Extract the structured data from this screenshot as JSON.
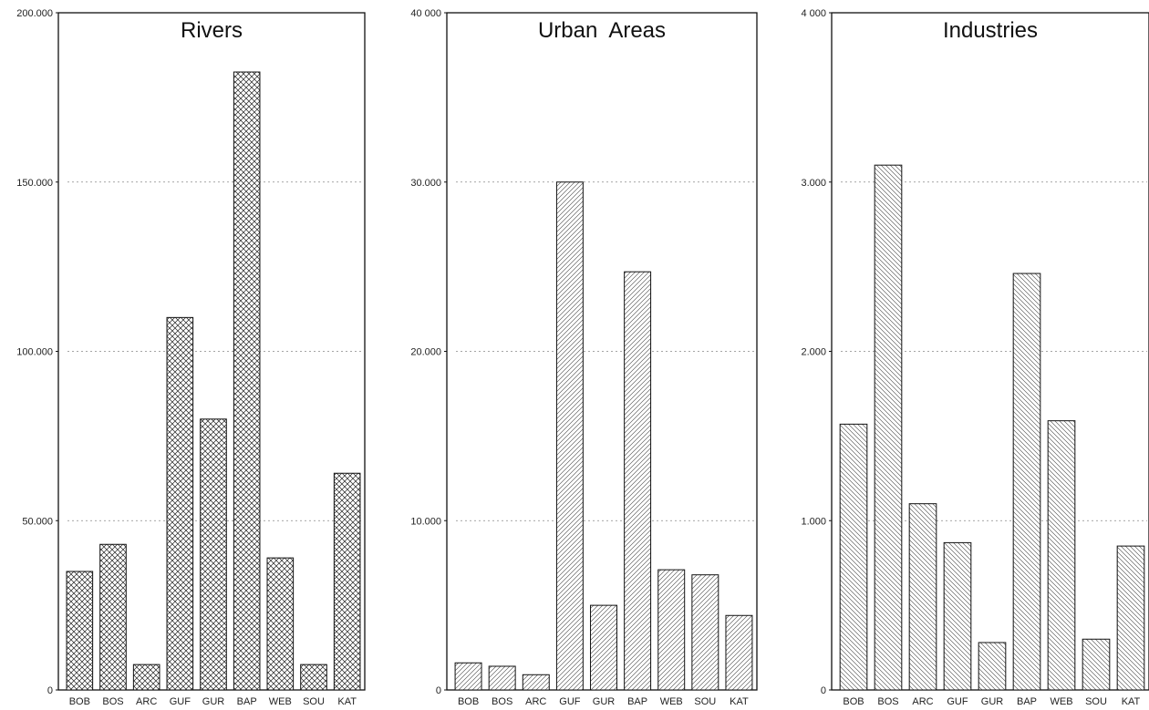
{
  "chart_data": [
    {
      "type": "bar",
      "title": "Rivers",
      "categories": [
        "BOB",
        "BOS",
        "ARC",
        "GUF",
        "GUR",
        "BAP",
        "WEB",
        "SOU",
        "KAT"
      ],
      "values": [
        35000,
        43000,
        7500,
        110000,
        80000,
        182500,
        39000,
        7500,
        64000
      ],
      "ylim": [
        0,
        200000
      ],
      "yticks": [
        0,
        50000,
        100000,
        150000,
        200000
      ],
      "ytick_labels": [
        "0",
        "50.000",
        "100.000",
        "150.000",
        "200.000"
      ],
      "grid": "dotted",
      "pattern": "crosshatch"
    },
    {
      "type": "bar",
      "title": "Urban  Areas",
      "categories": [
        "BOB",
        "BOS",
        "ARC",
        "GUF",
        "GUR",
        "BAP",
        "WEB",
        "SOU",
        "KAT"
      ],
      "values": [
        1600,
        1400,
        900,
        30000,
        5000,
        24700,
        7100,
        6800,
        4400
      ],
      "ylim": [
        0,
        40000
      ],
      "yticks": [
        0,
        10000,
        20000,
        30000,
        40000
      ],
      "ytick_labels": [
        "0",
        "10.000",
        "20.000",
        "30.000",
        "40 000"
      ],
      "grid": "dotted",
      "pattern": "diagonal-right"
    },
    {
      "type": "bar",
      "title": "Industries",
      "categories": [
        "BOB",
        "BOS",
        "ARC",
        "GUF",
        "GUR",
        "BAP",
        "WEB",
        "SOU",
        "KAT"
      ],
      "values": [
        1570,
        3100,
        1100,
        870,
        280,
        2460,
        1590,
        300,
        850
      ],
      "ylim": [
        0,
        4000
      ],
      "yticks": [
        0,
        1000,
        2000,
        3000,
        4000
      ],
      "ytick_labels": [
        "0",
        "1.000",
        "2.000",
        "3.000",
        "4 000"
      ],
      "grid": "dotted",
      "pattern": "diagonal-left"
    }
  ]
}
